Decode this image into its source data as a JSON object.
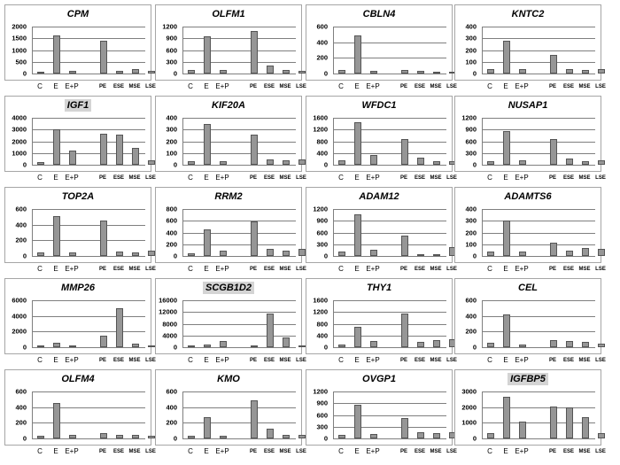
{
  "categories": [
    "C",
    "E",
    "E+P",
    "PE",
    "ESE",
    "MSE",
    "LSE"
  ],
  "chart_data": [
    {
      "type": "bar",
      "title": "CPM",
      "highlight": false,
      "categories": [
        "C",
        "E",
        "E+P",
        "PE",
        "ESE",
        "MSE",
        "LSE"
      ],
      "values": [
        80,
        1620,
        100,
        1400,
        130,
        180,
        110
      ],
      "yticks": [
        0,
        500,
        1000,
        1500,
        2000
      ],
      "ylim": [
        0,
        2000
      ]
    },
    {
      "type": "bar",
      "title": "OLFM1",
      "highlight": false,
      "categories": [
        "C",
        "E",
        "E+P",
        "PE",
        "ESE",
        "MSE",
        "LSE"
      ],
      "values": [
        80,
        940,
        80,
        1080,
        210,
        80,
        70
      ],
      "yticks": [
        0,
        300,
        600,
        900,
        1200
      ],
      "ylim": [
        0,
        1200
      ]
    },
    {
      "type": "bar",
      "title": "CBLN4",
      "highlight": false,
      "categories": [
        "C",
        "E",
        "E+P",
        "PE",
        "ESE",
        "MSE",
        "LSE"
      ],
      "values": [
        50,
        490,
        30,
        50,
        30,
        25,
        25
      ],
      "yticks": [
        0,
        200,
        400,
        600
      ],
      "ylim": [
        0,
        600
      ]
    },
    {
      "type": "bar",
      "title": "KNTC2",
      "highlight": false,
      "categories": [
        "C",
        "E",
        "E+P",
        "PE",
        "ESE",
        "MSE",
        "LSE"
      ],
      "values": [
        35,
        280,
        35,
        160,
        40,
        30,
        38
      ],
      "yticks": [
        0,
        100,
        200,
        300,
        400
      ],
      "ylim": [
        0,
        400
      ]
    },
    {
      "type": "bar",
      "title": "IGF1",
      "highlight": true,
      "categories": [
        "C",
        "E",
        "E+P",
        "PE",
        "ESE",
        "MSE",
        "LSE"
      ],
      "values": [
        200,
        3050,
        1200,
        2650,
        2600,
        1400,
        350
      ],
      "yticks": [
        0,
        1000,
        2000,
        3000,
        4000
      ],
      "ylim": [
        0,
        4000
      ]
    },
    {
      "type": "bar",
      "title": "KIF20A",
      "highlight": false,
      "categories": [
        "C",
        "E",
        "E+P",
        "PE",
        "ESE",
        "MSE",
        "LSE"
      ],
      "values": [
        30,
        350,
        30,
        255,
        45,
        35,
        45
      ],
      "yticks": [
        0,
        100,
        200,
        300,
        400
      ],
      "ylim": [
        0,
        400
      ]
    },
    {
      "type": "bar",
      "title": "WFDC1",
      "highlight": false,
      "categories": [
        "C",
        "E",
        "E+P",
        "PE",
        "ESE",
        "MSE",
        "LSE"
      ],
      "values": [
        150,
        1440,
        320,
        870,
        230,
        110,
        110
      ],
      "yticks": [
        0,
        400,
        800,
        1200,
        1600
      ],
      "ylim": [
        0,
        1600
      ]
    },
    {
      "type": "bar",
      "title": "NUSAP1",
      "highlight": false,
      "categories": [
        "C",
        "E",
        "E+P",
        "PE",
        "ESE",
        "MSE",
        "LSE"
      ],
      "values": [
        100,
        850,
        110,
        650,
        150,
        100,
        120
      ],
      "yticks": [
        0,
        300,
        600,
        900,
        1200
      ],
      "ylim": [
        0,
        1200
      ]
    },
    {
      "type": "bar",
      "title": "TOP2A",
      "highlight": false,
      "categories": [
        "C",
        "E",
        "E+P",
        "PE",
        "ESE",
        "MSE",
        "LSE"
      ],
      "values": [
        40,
        505,
        40,
        455,
        55,
        40,
        65
      ],
      "yticks": [
        0,
        200,
        400,
        600
      ],
      "ylim": [
        0,
        600
      ]
    },
    {
      "type": "bar",
      "title": "RRM2",
      "highlight": false,
      "categories": [
        "C",
        "E",
        "E+P",
        "PE",
        "ESE",
        "MSE",
        "LSE"
      ],
      "values": [
        45,
        450,
        85,
        590,
        115,
        85,
        125
      ],
      "yticks": [
        0,
        200,
        400,
        600,
        800
      ],
      "ylim": [
        0,
        800
      ]
    },
    {
      "type": "bar",
      "title": "ADAM12",
      "highlight": false,
      "categories": [
        "C",
        "E",
        "E+P",
        "PE",
        "ESE",
        "MSE",
        "LSE"
      ],
      "values": [
        110,
        1070,
        160,
        530,
        30,
        30,
        220
      ],
      "yticks": [
        0,
        300,
        600,
        900,
        1200
      ],
      "ylim": [
        0,
        1200
      ]
    },
    {
      "type": "bar",
      "title": "ADAMTS6",
      "highlight": false,
      "categories": [
        "C",
        "E",
        "E+P",
        "PE",
        "ESE",
        "MSE",
        "LSE"
      ],
      "values": [
        40,
        300,
        35,
        115,
        45,
        65,
        60
      ],
      "yticks": [
        0,
        100,
        200,
        300,
        400
      ],
      "ylim": [
        0,
        400
      ]
    },
    {
      "type": "bar",
      "title": "MMP26",
      "highlight": false,
      "categories": [
        "C",
        "E",
        "E+P",
        "PE",
        "ESE",
        "MSE",
        "LSE"
      ],
      "values": [
        50,
        600,
        100,
        1500,
        5000,
        450,
        50
      ],
      "yticks": [
        0,
        2000,
        4000,
        6000
      ],
      "ylim": [
        0,
        6000
      ]
    },
    {
      "type": "bar",
      "title": "SCGB1D2",
      "highlight": true,
      "categories": [
        "C",
        "E",
        "E+P",
        "PE",
        "ESE",
        "MSE",
        "LSE"
      ],
      "values": [
        200,
        900,
        2000,
        400,
        11500,
        3300,
        300
      ],
      "yticks": [
        0,
        4000,
        8000,
        12000,
        16000
      ],
      "ylim": [
        0,
        16000
      ]
    },
    {
      "type": "bar",
      "title": "THY1",
      "highlight": false,
      "categories": [
        "C",
        "E",
        "E+P",
        "PE",
        "ESE",
        "MSE",
        "LSE"
      ],
      "values": [
        80,
        690,
        210,
        1140,
        190,
        250,
        280
      ],
      "yticks": [
        0,
        400,
        800,
        1200,
        1600
      ],
      "ylim": [
        0,
        1600
      ]
    },
    {
      "type": "bar",
      "title": "CEL",
      "highlight": false,
      "categories": [
        "C",
        "E",
        "E+P",
        "PE",
        "ESE",
        "MSE",
        "LSE"
      ],
      "values": [
        55,
        415,
        30,
        90,
        80,
        70,
        45
      ],
      "yticks": [
        0,
        200,
        400,
        600
      ],
      "ylim": [
        0,
        600
      ]
    },
    {
      "type": "bar",
      "title": "OLFM4",
      "highlight": false,
      "categories": [
        "C",
        "E",
        "E+P",
        "PE",
        "ESE",
        "MSE",
        "LSE"
      ],
      "values": [
        35,
        455,
        45,
        65,
        40,
        40,
        30
      ],
      "yticks": [
        0,
        200,
        400,
        600
      ],
      "ylim": [
        0,
        600
      ]
    },
    {
      "type": "bar",
      "title": "KMO",
      "highlight": false,
      "categories": [
        "C",
        "E",
        "E+P",
        "PE",
        "ESE",
        "MSE",
        "LSE"
      ],
      "values": [
        30,
        270,
        30,
        485,
        120,
        45,
        50
      ],
      "yticks": [
        0,
        200,
        400,
        600
      ],
      "ylim": [
        0,
        600
      ]
    },
    {
      "type": "bar",
      "title": "OVGP1",
      "highlight": false,
      "categories": [
        "C",
        "E",
        "E+P",
        "PE",
        "ESE",
        "MSE",
        "LSE"
      ],
      "values": [
        100,
        870,
        115,
        520,
        165,
        145,
        165
      ],
      "yticks": [
        0,
        300,
        600,
        900,
        1200
      ],
      "ylim": [
        0,
        1200
      ]
    },
    {
      "type": "bar",
      "title": "IGFBP5",
      "highlight": true,
      "categories": [
        "C",
        "E",
        "E+P",
        "PE",
        "ESE",
        "MSE",
        "LSE"
      ],
      "values": [
        350,
        2650,
        1100,
        2050,
        2000,
        1380,
        350
      ],
      "yticks": [
        0,
        1000,
        2000,
        3000
      ],
      "ylim": [
        0,
        3000
      ]
    }
  ]
}
